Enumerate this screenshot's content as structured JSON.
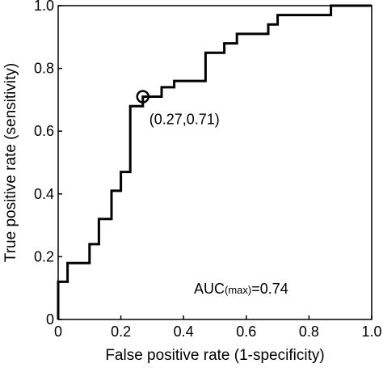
{
  "chart_data": {
    "type": "line",
    "xlabel": "False positive rate (1-specificity)",
    "ylabel": "True positive rate (sensitivity)",
    "xlim": [
      0,
      1
    ],
    "ylim": [
      0,
      1
    ],
    "xticks": [
      "0",
      "0.2",
      "0.4",
      "0.6",
      "0.8",
      "1.0"
    ],
    "yticks": [
      "0",
      "0.2",
      "0.4",
      "0.6",
      "0.8",
      "1.0"
    ],
    "grid": false,
    "series": [
      {
        "x": [
          0,
          0,
          0.03,
          0.03,
          0.1,
          0.1,
          0.13,
          0.13,
          0.17,
          0.17,
          0.2,
          0.2,
          0.23,
          0.23,
          0.27,
          0.27,
          0.33,
          0.33,
          0.37,
          0.37,
          0.47,
          0.47,
          0.53,
          0.53,
          0.57,
          0.57,
          0.67,
          0.67,
          0.7,
          0.7,
          0.87,
          0.87,
          1.0
        ],
        "y": [
          0,
          0.12,
          0.12,
          0.18,
          0.18,
          0.24,
          0.24,
          0.32,
          0.32,
          0.41,
          0.41,
          0.47,
          0.47,
          0.68,
          0.68,
          0.71,
          0.71,
          0.74,
          0.74,
          0.76,
          0.76,
          0.85,
          0.85,
          0.88,
          0.88,
          0.91,
          0.91,
          0.94,
          0.94,
          0.97,
          0.97,
          1.0,
          1.0
        ]
      }
    ],
    "highlight_point": {
      "x": 0.27,
      "y": 0.71,
      "label": "(0.27,0.71)"
    },
    "annotation": {
      "main": "AUC",
      "sub": "(max)",
      "value": "=0.74"
    }
  }
}
